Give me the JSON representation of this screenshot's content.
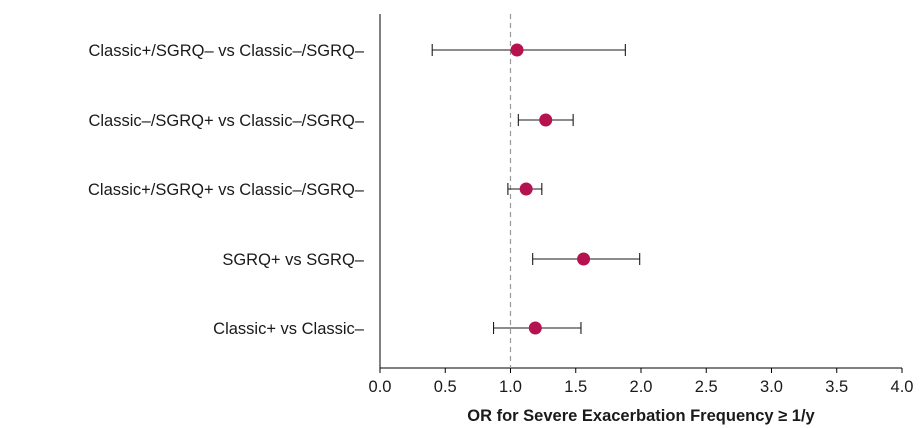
{
  "chart_data": {
    "type": "forest",
    "categories": [
      "Classic+/SGRQ– vs Classic–/SGRQ–",
      "Classic–/SGRQ+ vs Classic–/SGRQ–",
      "Classic+/SGRQ+ vs Classic–/SGRQ–",
      "SGRQ+ vs SGRQ–",
      "Classic+ vs Classic–"
    ],
    "estimates": [
      1.05,
      1.27,
      1.12,
      1.56,
      1.19
    ],
    "ci_lower": [
      0.4,
      1.06,
      0.98,
      1.17,
      0.87
    ],
    "ci_upper": [
      1.88,
      1.48,
      1.24,
      1.99,
      1.54
    ],
    "xlabel": "OR for Severe Exacerbation Frequency ≥ 1/y",
    "ylabel": "",
    "xlim": [
      0.0,
      4.0
    ],
    "xticks": [
      "0.0",
      "0.5",
      "1.0",
      "1.5",
      "2.0",
      "2.5",
      "3.0",
      "3.5",
      "4.0"
    ],
    "reference_line": 1.0,
    "point_color": "#b5124f",
    "grid": false
  }
}
